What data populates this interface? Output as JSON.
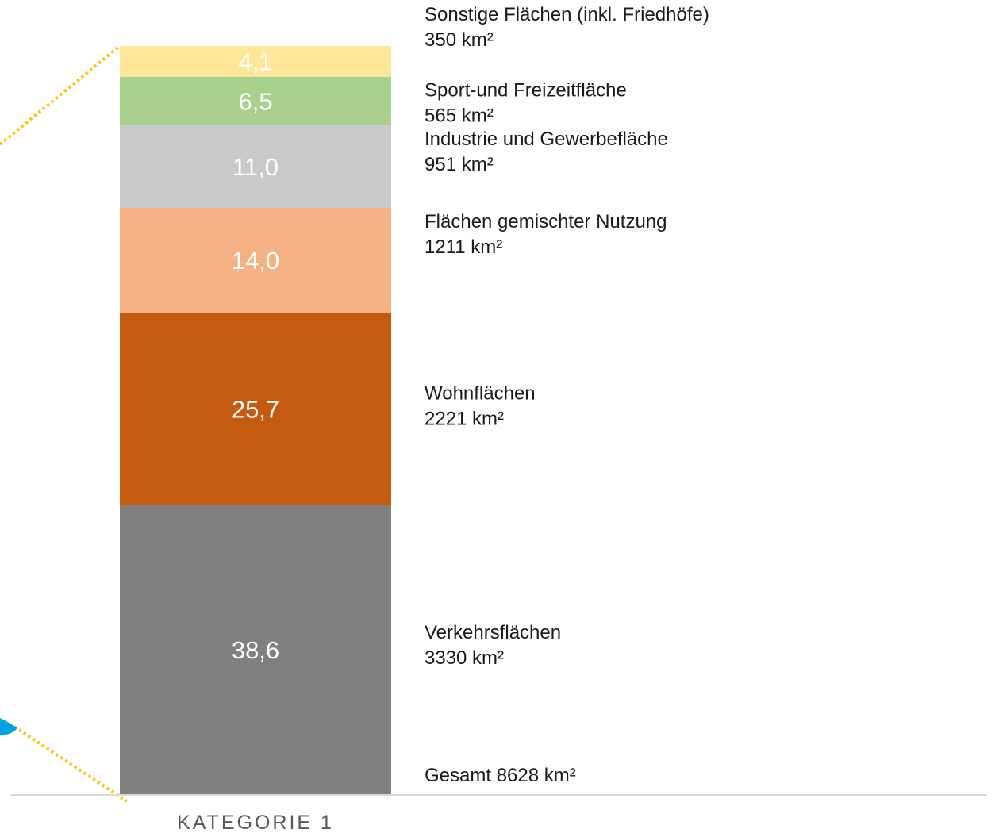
{
  "chart_data": {
    "type": "bar",
    "stacked": true,
    "categories": [
      "KATEGORIE 1"
    ],
    "unit": "%",
    "ylim": [
      0,
      100
    ],
    "grid": false,
    "series": [
      {
        "name": "Verkehrsflächen",
        "value": 38.6,
        "label": "38,6",
        "area": "3330 km²",
        "color": "#808080"
      },
      {
        "name": "Wohnflächen",
        "value": 25.7,
        "label": "25,7",
        "area": "2221 km²",
        "color": "#c55a11"
      },
      {
        "name": "Flächen gemischter Nutzung",
        "value": 14.0,
        "label": "14,0",
        "area": "1211 km²",
        "color": "#f4b183"
      },
      {
        "name": "Industrie und Gewerbefläche",
        "value": 11.0,
        "label": "11,0",
        "area": "951 km²",
        "color": "#c9c9c9"
      },
      {
        "name": "Sport-und Freizeitfläche",
        "value": 6.5,
        "label": "6,5",
        "area": "565 km²",
        "color": "#a9d18e"
      },
      {
        "name": "Sonstige Flächen (inkl. Friedhöfe)",
        "value": 4.1,
        "label": "4,1",
        "area": "350 km²",
        "color": "#ffe699"
      }
    ],
    "total_label": "Gesamt 8628 km²",
    "connector_color": "#ffc000",
    "accent_color": "#00a3e0",
    "axis_color": "#d9d9d9"
  }
}
